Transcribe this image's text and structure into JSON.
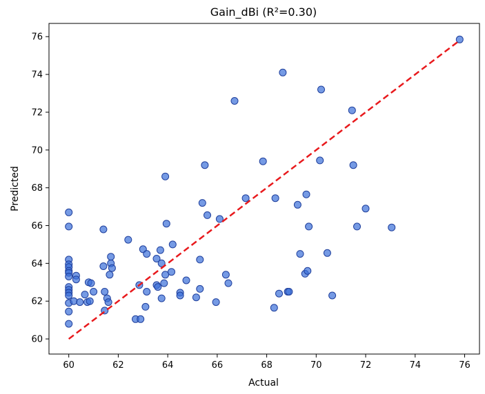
{
  "chart_data": {
    "type": "scatter",
    "title": "Gain_dBi (R²=0.30)",
    "xlabel": "Actual",
    "ylabel": "Predicted",
    "xlim": [
      59.2,
      76.6
    ],
    "ylim": [
      59.2,
      76.7
    ],
    "xticks": [
      60,
      62,
      64,
      66,
      68,
      70,
      72,
      74,
      76
    ],
    "yticks": [
      60,
      62,
      64,
      66,
      68,
      70,
      72,
      74,
      76
    ],
    "grid": false,
    "point_color": "#3a6fd8",
    "point_edge_color": "#1f3f9c",
    "reference_line": {
      "from": [
        60,
        60
      ],
      "to": [
        75.8,
        75.8
      ],
      "color": "#e8191c",
      "style": "dashed"
    },
    "points": [
      [
        60.0,
        66.7
      ],
      [
        60.0,
        65.95
      ],
      [
        60.0,
        64.2
      ],
      [
        60.0,
        63.95
      ],
      [
        60.0,
        63.8
      ],
      [
        60.0,
        63.6
      ],
      [
        60.0,
        63.5
      ],
      [
        60.0,
        63.3
      ],
      [
        60.0,
        62.75
      ],
      [
        60.0,
        62.6
      ],
      [
        60.0,
        62.45
      ],
      [
        60.0,
        62.3
      ],
      [
        60.0,
        61.9
      ],
      [
        60.0,
        61.45
      ],
      [
        60.0,
        60.8
      ],
      [
        60.2,
        62.0
      ],
      [
        60.3,
        63.35
      ],
      [
        60.3,
        63.15
      ],
      [
        60.45,
        61.95
      ],
      [
        60.65,
        62.35
      ],
      [
        60.75,
        61.95
      ],
      [
        60.8,
        63.0
      ],
      [
        60.85,
        62.0
      ],
      [
        60.9,
        62.95
      ],
      [
        61.0,
        62.5
      ],
      [
        61.4,
        65.8
      ],
      [
        61.4,
        63.85
      ],
      [
        61.45,
        62.5
      ],
      [
        61.45,
        61.5
      ],
      [
        61.55,
        62.15
      ],
      [
        61.6,
        61.95
      ],
      [
        61.65,
        63.4
      ],
      [
        61.7,
        64.0
      ],
      [
        61.7,
        64.35
      ],
      [
        61.75,
        63.75
      ],
      [
        62.4,
        65.25
      ],
      [
        62.7,
        61.05
      ],
      [
        62.85,
        62.85
      ],
      [
        62.9,
        61.05
      ],
      [
        63.0,
        64.75
      ],
      [
        63.1,
        61.7
      ],
      [
        63.15,
        64.5
      ],
      [
        63.15,
        62.5
      ],
      [
        63.55,
        62.85
      ],
      [
        63.55,
        64.25
      ],
      [
        63.6,
        62.75
      ],
      [
        63.7,
        64.7
      ],
      [
        63.75,
        62.15
      ],
      [
        63.75,
        64.0
      ],
      [
        63.85,
        62.95
      ],
      [
        63.9,
        63.4
      ],
      [
        63.9,
        68.6
      ],
      [
        63.95,
        66.1
      ],
      [
        64.15,
        63.55
      ],
      [
        64.2,
        65.0
      ],
      [
        64.5,
        62.45
      ],
      [
        64.5,
        62.3
      ],
      [
        64.75,
        63.1
      ],
      [
        65.15,
        62.2
      ],
      [
        65.3,
        64.2
      ],
      [
        65.3,
        62.65
      ],
      [
        65.4,
        67.2
      ],
      [
        65.5,
        69.2
      ],
      [
        65.6,
        66.55
      ],
      [
        65.95,
        61.95
      ],
      [
        66.1,
        66.35
      ],
      [
        66.35,
        63.4
      ],
      [
        66.45,
        62.95
      ],
      [
        66.7,
        72.6
      ],
      [
        67.15,
        67.45
      ],
      [
        67.85,
        69.4
      ],
      [
        68.3,
        61.65
      ],
      [
        68.35,
        67.45
      ],
      [
        68.5,
        62.4
      ],
      [
        68.65,
        74.1
      ],
      [
        68.85,
        62.5
      ],
      [
        68.9,
        62.5
      ],
      [
        69.25,
        67.1
      ],
      [
        69.35,
        64.5
      ],
      [
        69.55,
        63.45
      ],
      [
        69.6,
        67.65
      ],
      [
        69.65,
        63.6
      ],
      [
        69.7,
        65.95
      ],
      [
        70.15,
        69.45
      ],
      [
        70.2,
        73.2
      ],
      [
        70.45,
        64.55
      ],
      [
        70.65,
        62.3
      ],
      [
        71.45,
        72.1
      ],
      [
        71.5,
        69.2
      ],
      [
        71.65,
        65.95
      ],
      [
        72.0,
        66.9
      ],
      [
        73.05,
        65.9
      ],
      [
        75.8,
        75.85
      ]
    ]
  }
}
